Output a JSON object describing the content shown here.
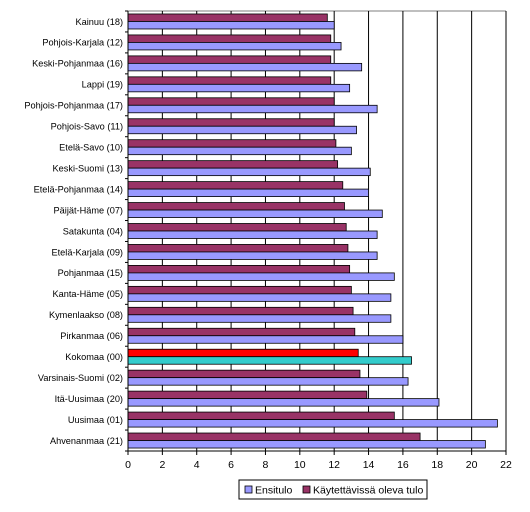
{
  "chart_data": {
    "type": "bar",
    "orientation": "horizontal",
    "categories": [
      "Kainuu (18)",
      "Pohjois-Karjala (12)",
      "Keski-Pohjanmaa (16)",
      "Lappi (19)",
      "Pohjois-Pohjanmaa (17)",
      "Pohjois-Savo (11)",
      "Etelä-Savo (10)",
      "Keski-Suomi (13)",
      "Etelä-Pohjanmaa (14)",
      "Päijät-Häme (07)",
      "Satakunta (04)",
      "Etelä-Karjala (09)",
      "Pohjanmaa (15)",
      "Kanta-Häme (05)",
      "Kymenlaakso (08)",
      "Pirkanmaa (06)",
      "Kokomaa (00)",
      "Varsinais-Suomi (02)",
      "Itä-Uusimaa (20)",
      "Uusimaa (01)",
      "Ahvenanmaa (21)"
    ],
    "series": [
      {
        "name": "Ensitulo",
        "color": "#9999ff",
        "values": [
          12.0,
          12.4,
          13.6,
          12.9,
          14.5,
          13.3,
          13.0,
          14.1,
          14.0,
          14.8,
          14.5,
          14.5,
          15.5,
          15.3,
          15.3,
          16.0,
          16.5,
          16.3,
          18.1,
          21.5,
          20.8
        ]
      },
      {
        "name": "Käytettävissä oleva tulo",
        "color": "#993366",
        "values": [
          11.6,
          11.8,
          11.8,
          11.8,
          12.0,
          12.0,
          12.1,
          12.2,
          12.5,
          12.6,
          12.7,
          12.8,
          12.9,
          13.0,
          13.1,
          13.2,
          13.4,
          13.5,
          13.9,
          15.5,
          17.0
        ]
      }
    ],
    "highlight": {
      "category": "Kokomaa (00)",
      "Ensitulo_color": "#33cccc",
      "Käytettävissä oleva tulo_color": "#ff0000"
    },
    "xlim": [
      0,
      22
    ],
    "x_ticks": [
      0,
      2,
      4,
      6,
      8,
      10,
      12,
      14,
      16,
      18,
      20,
      22
    ],
    "grid": "vertical",
    "legend_position": "bottom",
    "title": "",
    "xlabel": "",
    "ylabel": ""
  }
}
